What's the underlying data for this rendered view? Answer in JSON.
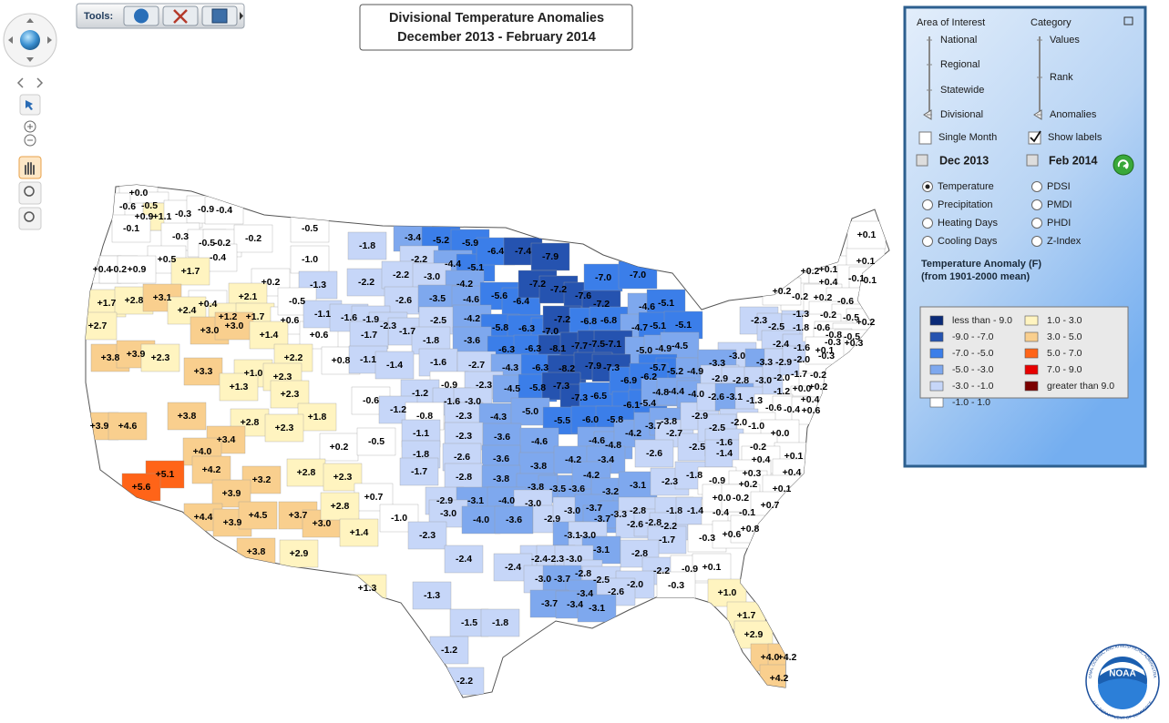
{
  "toolbar": {
    "label": "Tools:"
  },
  "title": {
    "line1": "Divisional Temperature Anomalies",
    "line2": "December 2013 - February 2014"
  },
  "panel": {
    "area_heading": "Area of Interest",
    "area_options": [
      "National",
      "Regional",
      "Statewide",
      "Divisional"
    ],
    "category_heading": "Category",
    "category_options": [
      "Values",
      "Rank",
      "Anomalies"
    ],
    "single_month": "Single Month",
    "show_labels": "Show labels",
    "start": "Dec 2013",
    "end": "Feb 2014",
    "parameters": [
      "Temperature",
      "Precipitation",
      "Heating Days",
      "Cooling Days",
      "PDSI",
      "PMDI",
      "PHDI",
      "Z-Index"
    ],
    "legend_title": "Temperature Anomaly (F)",
    "legend_subtitle": "(from 1901-2000 mean)",
    "legend": [
      {
        "label": "less than - 9.0",
        "color": "#0a2a78"
      },
      {
        "label": "-9.0 - -7.0",
        "color": "#2553b0"
      },
      {
        "label": "-7.0 - -5.0",
        "color": "#3b7ee9"
      },
      {
        "label": "-5.0 - -3.0",
        "color": "#7ea8ee"
      },
      {
        "label": "-3.0 - -1.0",
        "color": "#c6d6f8"
      },
      {
        "label": "-1.0 - 1.0",
        "color": "#ffffff"
      },
      {
        "label": "1.0 - 3.0",
        "color": "#fff4c0"
      },
      {
        "label": "3.0 - 5.0",
        "color": "#f9cf8e"
      },
      {
        "label": "5.0 - 7.0",
        "color": "#ff6418"
      },
      {
        "label": "7.0 - 9.0",
        "color": "#e80000"
      },
      {
        "label": "greater than 9.0",
        "color": "#7a0000"
      }
    ]
  },
  "map": {
    "division_labels": [
      "+0.0",
      "-0.6",
      "-0.5",
      "+0.9",
      "+1.1",
      "-0.3",
      "-0.9",
      "-0.4",
      "-0.1",
      "-0.3",
      "-0.5",
      "-0.2",
      "-0.2",
      "-0.4",
      "+0.5",
      "+0.4",
      "-0.2",
      "+0.9",
      "+1.7",
      "+0.2",
      "+1.7",
      "+2.8",
      "+3.1",
      "+0.4",
      "+2.1",
      "+2.4",
      "+1.2",
      "+1.7",
      "+0.6",
      "+2.7",
      "+3.0",
      "+3.0",
      "+1.4",
      "+0.6",
      "+3.8",
      "+3.9",
      "+2.3",
      "+3.3",
      "+2.2",
      "+0.8",
      "+1.0",
      "+2.3",
      "+1.3",
      "+2.3",
      "+3.8",
      "+1.8",
      "+3.9",
      "+4.6",
      "+2.8",
      "+2.3",
      "+3.4",
      "+4.0",
      "+0.2",
      "+4.2",
      "+5.1",
      "+3.2",
      "+2.8",
      "+2.3",
      "+5.6",
      "+3.9",
      "+0.7",
      "+4.4",
      "+3.9",
      "+4.5",
      "+3.7",
      "+3.0",
      "+2.8",
      "+1.4",
      "+3.8",
      "+2.9",
      "+1.3",
      "-0.5",
      "-1.8",
      "-3.4",
      "-5.2",
      "-5.9",
      "-1.0",
      "-2.2",
      "-4.4",
      "-5.1",
      "-6.4",
      "-7.4",
      "-7.9",
      "-1.3",
      "-2.2",
      "-2.2",
      "-3.0",
      "-4.2",
      "-0.5",
      "-2.6",
      "-3.5",
      "-4.6",
      "-5.6",
      "-6.4",
      "-7.2",
      "-7.2",
      "-7.6",
      "-7.0",
      "-7.0",
      "-7.2",
      "-1.1",
      "-1.6",
      "-1.9",
      "-2.3",
      "-1.7",
      "-1.7",
      "-2.5",
      "-4.2",
      "-5.8",
      "-6.3",
      "-7.0",
      "-7.2",
      "-6.8",
      "-6.8",
      "-4.6",
      "-5.1",
      "-4.7",
      "-5.1",
      "-5.1",
      "-1.8",
      "-3.6",
      "-6.3",
      "-6.3",
      "-8.1",
      "-7.7",
      "-7.5",
      "-7.1",
      "-5.0",
      "-4.9",
      "-4.5",
      "-1.1",
      "-1.4",
      "-1.6",
      "-2.7",
      "-4.3",
      "-6.3",
      "-8.2",
      "-7.9",
      "-7.3",
      "-5.7",
      "-5.2",
      "-4.9",
      "-0.9",
      "-2.3",
      "-1.2",
      "-1.6",
      "-3.0",
      "-4.5",
      "-5.8",
      "-7.3",
      "-7.3",
      "-6.5",
      "-6.9",
      "-6.2",
      "-6.1",
      "-5.4",
      "-4.8",
      "-4.4",
      "-4.0",
      "-0.6",
      "-1.2",
      "-0.8",
      "-2.3",
      "-4.3",
      "-5.0",
      "-5.5",
      "-6.0",
      "-5.8",
      "-0.5",
      "-1.1",
      "-2.3",
      "-3.6",
      "-4.6",
      "-4.6",
      "-4.8",
      "-4.2",
      "-3.7",
      "-3.8",
      "-2.7",
      "-2.9",
      "-1.8",
      "-2.6",
      "-3.6",
      "-3.8",
      "-4.2",
      "-3.4",
      "-2.6",
      "-2.5",
      "-1.7",
      "-2.8",
      "-3.8",
      "-3.8",
      "-3.5",
      "-3.6",
      "-4.2",
      "-3.2",
      "-3.1",
      "-2.3",
      "-1.8",
      "-2.9",
      "-3.1",
      "-4.0",
      "-3.0",
      "-3.0",
      "-4.0",
      "-3.6",
      "-2.9",
      "-3.0",
      "-3.7",
      "-3.7",
      "-3.3",
      "-2.8",
      "-2.6",
      "-2.8",
      "-1.8",
      "-2.2",
      "-1.4",
      "-0.4",
      "-0.1",
      "-1.0",
      "-3.1",
      "-3.0",
      "-2.3",
      "-1.7",
      "-0.3",
      "-3.1",
      "-2.8",
      "-2.4",
      "-2.4",
      "-2.3",
      "-3.0",
      "-2.4",
      "-2.8",
      "-2.2",
      "-0.9",
      "+0.1",
      "-3.0",
      "-3.7",
      "-2.5",
      "-2.0",
      "-0.3",
      "-3.4",
      "-2.6",
      "-1.3",
      "-3.7",
      "-3.4",
      "-3.1",
      "+1.0",
      "-1.5",
      "-1.8",
      "-1.2",
      "-2.2",
      "-3.0",
      "-2.3",
      "-2.5",
      "-1.3",
      "-1.8",
      "-2.4",
      "-1.6",
      "-3.3",
      "-3.3",
      "-2.9",
      "-2.0",
      "-0.3",
      "-2.9",
      "-2.8",
      "-3.0",
      "-2.0",
      "-1.7",
      "-0.2",
      "-2.6",
      "-3.1",
      "-1.3",
      "-1.2",
      "+0.0",
      "+0.2",
      "+0.4",
      "-0.6",
      "-0.4",
      "+0.6",
      "-2.0",
      "-2.5",
      "-1.0",
      "+0.0",
      "-1.6",
      "-1.4",
      "-0.2",
      "+0.1",
      "+0.4",
      "+0.3",
      "+0.4",
      "-0.9",
      "+0.2",
      "+0.1",
      "+0.0",
      "-0.2",
      "+0.7",
      "+0.6",
      "+0.8",
      "+0.2",
      "+0.1",
      "+0.1",
      "+0.1",
      "+0.4",
      "-0.1",
      "-0.1",
      "-0.2",
      "+0.2",
      "-0.6",
      "+0.2",
      "-0.2",
      "-0.5",
      "+0.2",
      "-0.6",
      "-0.8",
      "-0.5",
      "-0.3",
      "+0.3",
      "+0.1",
      "+1.7",
      "+2.9",
      "+4.0",
      "+4.2",
      "+4.2"
    ]
  },
  "logo": {
    "name": "NOAA",
    "ring_top": "NATIONAL OCEANIC AND ATMOSPHERIC ADMINISTRATION",
    "ring_bottom": "U.S. DEPARTMENT OF COMMERCE"
  }
}
